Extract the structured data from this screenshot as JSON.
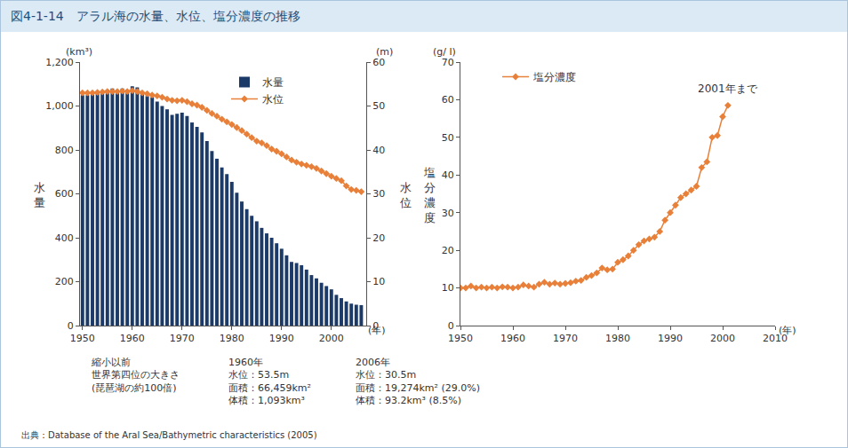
{
  "title": "図4-1-14　アラル海の水量、水位、塩分濃度の推移",
  "notes": [
    [
      "縮小以前",
      "世界第四位の大きさ",
      "(琵琶湖の約100倍)"
    ],
    [
      "1960年",
      "水位：53.5m",
      "面積：66,459km²",
      "体積：1,093km³"
    ],
    [
      "2006年",
      "水位：30.5m",
      "面積：19,274km² (29.0%)",
      "体積：93.2km³ (8.5%)"
    ]
  ],
  "source": "出典：Database of the Aral Sea/Bathymetric characteristics (2005)",
  "chart_data": [
    {
      "type": "bar",
      "ylabel": "水量",
      "y_unit": "(km³)",
      "y2label": "水位",
      "y2_unit": "(m)",
      "x_unit": "(年)",
      "x": [
        1950,
        1951,
        1952,
        1953,
        1954,
        1955,
        1956,
        1957,
        1958,
        1959,
        1960,
        1961,
        1962,
        1963,
        1964,
        1965,
        1966,
        1967,
        1968,
        1969,
        1970,
        1971,
        1972,
        1973,
        1974,
        1975,
        1976,
        1977,
        1978,
        1979,
        1980,
        1981,
        1982,
        1983,
        1984,
        1985,
        1986,
        1987,
        1988,
        1989,
        1990,
        1991,
        1992,
        1993,
        1994,
        1995,
        1996,
        1997,
        1998,
        1999,
        2000,
        2001,
        2002,
        2003,
        2004,
        2005,
        2006
      ],
      "series": [
        {
          "name": "水量",
          "type": "bar",
          "color": "#1c3a68",
          "values": [
            1050,
            1050,
            1055,
            1060,
            1070,
            1075,
            1080,
            1075,
            1080,
            1075,
            1090,
            1085,
            1065,
            1045,
            1040,
            1020,
            1000,
            985,
            960,
            965,
            970,
            955,
            925,
            905,
            880,
            840,
            795,
            760,
            720,
            690,
            655,
            605,
            565,
            530,
            500,
            475,
            445,
            420,
            400,
            375,
            350,
            320,
            290,
            285,
            275,
            255,
            230,
            215,
            195,
            180,
            165,
            140,
            125,
            110,
            100,
            95,
            93.2
          ]
        },
        {
          "name": "水位",
          "type": "line",
          "axis": "y2",
          "color": "#e8803a",
          "marker": "diamond",
          "values": [
            53,
            53,
            53,
            53.1,
            53.2,
            53.3,
            53.3,
            53.3,
            53.4,
            53.3,
            53.5,
            53.3,
            53,
            52.8,
            52.5,
            52.3,
            52,
            51.6,
            51.3,
            51.2,
            51.3,
            51,
            50.5,
            50.2,
            49.7,
            49,
            48.3,
            47.7,
            47,
            46.4,
            45.8,
            45.1,
            44.4,
            43.6,
            42.8,
            42,
            41.6,
            41,
            40.2,
            39.7,
            39.1,
            38.4,
            37.7,
            37.2,
            36.8,
            36.5,
            36.2,
            35.8,
            35.2,
            34.6,
            34,
            33.5,
            33,
            31.8,
            31,
            30.8,
            30.5
          ]
        }
      ],
      "xlim": [
        1949.5,
        2007
      ],
      "xticks": [
        1950,
        1960,
        1970,
        1980,
        1990,
        2000
      ],
      "ylim": [
        0,
        1200
      ],
      "yticks": [
        0,
        200,
        400,
        600,
        800,
        {
          "value": 1000,
          "label": "1,000"
        },
        {
          "value": 1200,
          "label": "1,200"
        }
      ],
      "y2lim": [
        0,
        60
      ],
      "y2ticks": [
        0,
        10,
        20,
        30,
        40,
        50,
        60
      ],
      "grid": false,
      "legend": "top"
    },
    {
      "type": "line",
      "ylabel": "塩分濃度",
      "y_unit": "(g/ l)",
      "x_unit": "(年)",
      "annotation": "2001年まで",
      "x": [
        1950,
        1951,
        1952,
        1953,
        1954,
        1955,
        1956,
        1957,
        1958,
        1959,
        1960,
        1961,
        1962,
        1963,
        1964,
        1965,
        1966,
        1967,
        1968,
        1969,
        1970,
        1971,
        1972,
        1973,
        1974,
        1975,
        1976,
        1977,
        1978,
        1979,
        1980,
        1981,
        1982,
        1983,
        1984,
        1985,
        1986,
        1987,
        1988,
        1989,
        1990,
        1991,
        1992,
        1993,
        1994,
        1995,
        1996,
        1997,
        1998,
        1999,
        2000,
        2001
      ],
      "series": [
        {
          "name": "塩分濃度",
          "color": "#e8803a",
          "marker": "diamond",
          "values": [
            10,
            10,
            10.5,
            10,
            10.2,
            10,
            10.2,
            10,
            10.3,
            10.2,
            10,
            10.2,
            10.8,
            10.5,
            10.2,
            11,
            11.5,
            11,
            11.3,
            11,
            11.2,
            11.4,
            11.8,
            12,
            12.8,
            13.3,
            14,
            15.3,
            14.8,
            15,
            16.8,
            17.5,
            18.5,
            20,
            21.5,
            22.5,
            23,
            23.5,
            25,
            28,
            30,
            32,
            34,
            35,
            36,
            37,
            42,
            43.5,
            50,
            50.5,
            55.5,
            58.5
          ]
        }
      ],
      "xlim": [
        1950,
        2010
      ],
      "xticks": [
        1950,
        1960,
        1970,
        1980,
        1990,
        2000,
        2010
      ],
      "ylim": [
        0,
        70
      ],
      "yticks": [
        0,
        10,
        20,
        30,
        40,
        50,
        60,
        70
      ],
      "grid": false,
      "legend": "top"
    }
  ]
}
